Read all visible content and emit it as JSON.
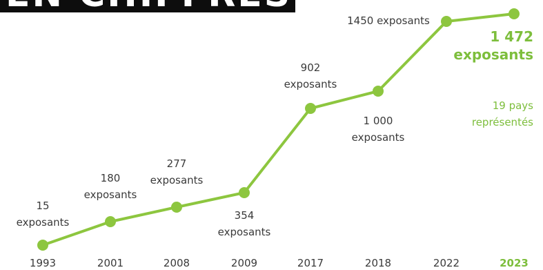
{
  "title": "EN CHIFFRES",
  "colors": {
    "line": "#8dc63f",
    "accent": "#7dbe3c",
    "text": "#3a3a3a",
    "band": "#0d0d0d"
  },
  "chart_data": {
    "type": "line",
    "categories": [
      "1993",
      "2001",
      "2008",
      "2009",
      "2017",
      "2018",
      "2022",
      "2023"
    ],
    "values": [
      15,
      180,
      277,
      354,
      902,
      1000,
      1450,
      1472
    ],
    "point_labels": [
      [
        "15",
        "exposants"
      ],
      [
        "180",
        "exposants"
      ],
      [
        "277",
        "exposants"
      ],
      [
        "354",
        "exposants"
      ],
      [
        "902",
        "exposants"
      ],
      [
        "1 000",
        "exposants"
      ],
      [
        "1450 exposants"
      ],
      []
    ],
    "highlight": {
      "category": "2023",
      "value_text": "1 472",
      "unit_text": "exposants",
      "note_lines": [
        "19 pays",
        "représentés"
      ]
    }
  }
}
